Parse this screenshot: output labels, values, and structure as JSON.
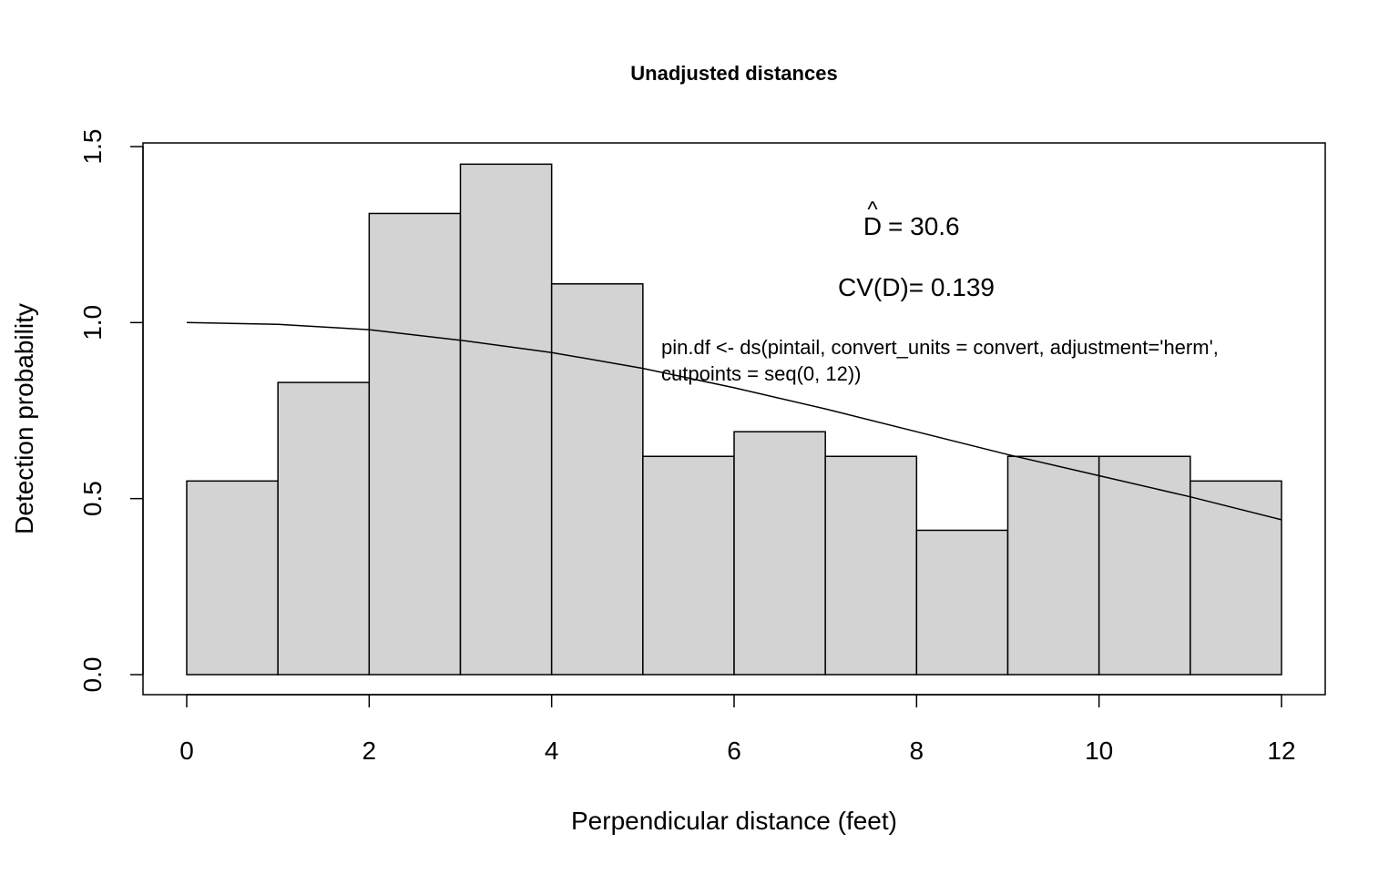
{
  "chart_data": {
    "type": "bar",
    "title": "Unadjusted distances",
    "xlabel": "Perpendicular distance (feet)",
    "ylabel": "Detection probability",
    "xlim": [
      0,
      12
    ],
    "ylim": [
      0,
      1.5
    ],
    "x_ticks": [
      "0",
      "2",
      "4",
      "6",
      "8",
      "10",
      "12"
    ],
    "y_ticks": [
      "0.0",
      "0.5",
      "1.0",
      "1.5"
    ],
    "bins": [
      {
        "from": 0,
        "to": 1,
        "value": 0.55
      },
      {
        "from": 1,
        "to": 2,
        "value": 0.83
      },
      {
        "from": 2,
        "to": 3,
        "value": 1.31
      },
      {
        "from": 3,
        "to": 4,
        "value": 1.45
      },
      {
        "from": 4,
        "to": 5,
        "value": 1.11
      },
      {
        "from": 5,
        "to": 6,
        "value": 0.62
      },
      {
        "from": 6,
        "to": 7,
        "value": 0.69
      },
      {
        "from": 7,
        "to": 8,
        "value": 0.62
      },
      {
        "from": 8,
        "to": 9,
        "value": 0.41
      },
      {
        "from": 9,
        "to": 10,
        "value": 0.62
      },
      {
        "from": 10,
        "to": 11,
        "value": 0.62
      },
      {
        "from": 11,
        "to": 12,
        "value": 0.55
      }
    ],
    "fitted_curve": {
      "name": "detection function",
      "x": [
        0,
        1,
        2,
        3,
        4,
        5,
        6,
        7,
        8,
        9,
        10,
        11,
        12
      ],
      "y": [
        1.0,
        0.995,
        0.98,
        0.95,
        0.915,
        0.87,
        0.815,
        0.755,
        0.69,
        0.625,
        0.565,
        0.505,
        0.44
      ]
    },
    "bar_fill": "#d3d3d3",
    "annotations": {
      "d_hat_symbol": "D",
      "d_hat_value": "= 30.6",
      "cv": "CV(D)= 0.139",
      "code_line1": "pin.df <- ds(pintail, convert_units = convert, adjustment='herm',",
      "code_line2": "cutpoints = seq(0, 12))"
    }
  }
}
